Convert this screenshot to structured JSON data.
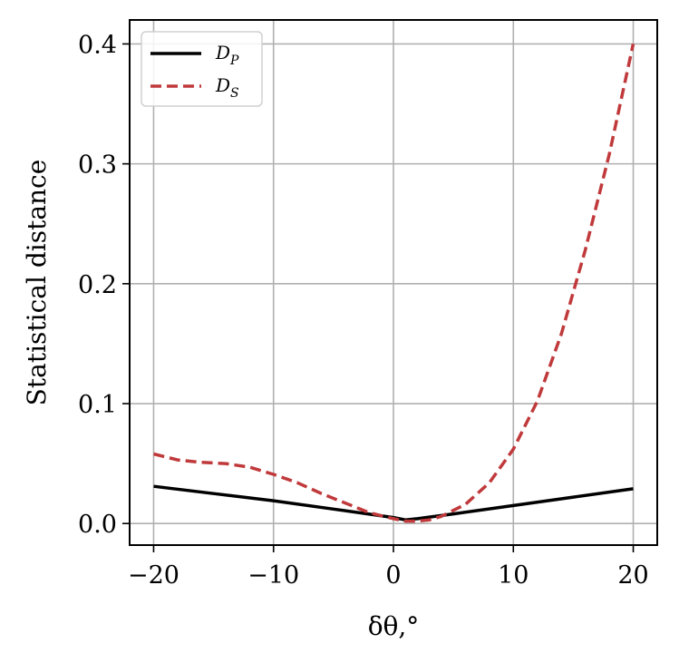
{
  "chart_data": {
    "type": "line",
    "title": "",
    "xlabel": "δθ,°",
    "ylabel": "Statistical distance",
    "xlim": [
      -22,
      22
    ],
    "ylim": [
      -0.018,
      0.42
    ],
    "xticks": [
      -20,
      -10,
      0,
      10,
      20
    ],
    "xtick_labels": [
      "−20",
      "−10",
      "0",
      "10",
      "20"
    ],
    "yticks": [
      0.0,
      0.1,
      0.2,
      0.3,
      0.4
    ],
    "ytick_labels": [
      "0.0",
      "0.1",
      "0.2",
      "0.3",
      "0.4"
    ],
    "grid": true,
    "legend_position": "top-left",
    "series": [
      {
        "name": "D_P",
        "legend_main": "D",
        "legend_sub": "P",
        "color": "#000000",
        "style": "solid",
        "x": [
          -20,
          -15,
          -10,
          -5,
          0,
          1,
          2,
          5,
          10,
          15,
          20
        ],
        "y": [
          0.031,
          0.025,
          0.019,
          0.012,
          0.005,
          0.003,
          0.004,
          0.008,
          0.015,
          0.022,
          0.029
        ]
      },
      {
        "name": "D_S",
        "legend_main": "D",
        "legend_sub": "S",
        "color": "#c0393b",
        "style": "dashed",
        "x": [
          -20,
          -18,
          -16,
          -14,
          -12,
          -10,
          -8,
          -6,
          -4,
          -2,
          0,
          1,
          2,
          3,
          4,
          6,
          8,
          10,
          12,
          14,
          16,
          18,
          20
        ],
        "y": [
          0.058,
          0.053,
          0.051,
          0.05,
          0.047,
          0.041,
          0.034,
          0.025,
          0.017,
          0.009,
          0.004,
          0.002,
          0.002,
          0.003,
          0.006,
          0.016,
          0.034,
          0.062,
          0.102,
          0.158,
          0.228,
          0.308,
          0.4
        ]
      }
    ]
  }
}
